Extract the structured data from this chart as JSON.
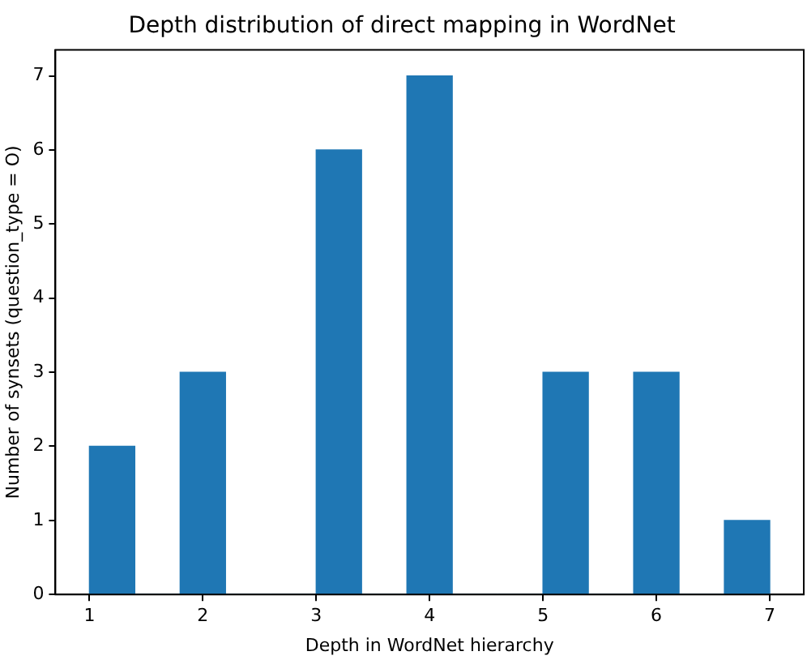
{
  "chart_data": {
    "type": "histogram",
    "title": "Depth distribution of direct mapping in WordNet",
    "xlabel": "Depth in WordNet hierarchy",
    "ylabel": "Number of synsets (question_type = O)",
    "bins": [
      1,
      1.4,
      1.8,
      2.2,
      2.6,
      3.0,
      3.4,
      3.8,
      4.2,
      4.6,
      5.0,
      5.4,
      5.8,
      6.2,
      6.6,
      7.0
    ],
    "values": [
      2,
      0,
      3,
      0,
      0,
      6,
      0,
      7,
      0,
      0,
      3,
      0,
      3,
      0,
      1
    ],
    "color": "#1f77b4",
    "xlim": [
      0.7,
      7.3
    ],
    "xticks": [
      1,
      2,
      3,
      4,
      5,
      6,
      7
    ],
    "ylim": [
      0,
      7.35
    ],
    "yticks": [
      0,
      1,
      2,
      3,
      4,
      5,
      6,
      7
    ],
    "grid": false,
    "legend": false
  }
}
